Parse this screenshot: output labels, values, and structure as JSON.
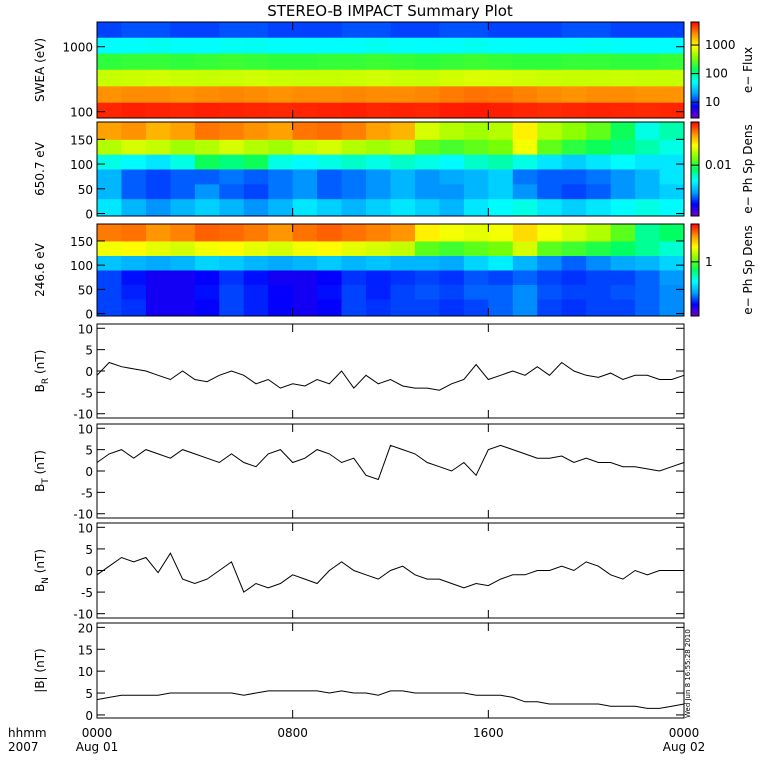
{
  "title": "STEREO-B IMPACT Summary Plot",
  "timestamp": "Wed Jun  8 16:55:28 2010",
  "colormap": [
    "#7000c0",
    "#0000ff",
    "#00a0ff",
    "#00ffff",
    "#00ff60",
    "#80ff00",
    "#ffff00",
    "#ff9000",
    "#ff0000"
  ],
  "x_axis": {
    "xlim": [
      0,
      24
    ],
    "xticks": [
      {
        "value": 0,
        "label": "0000"
      },
      {
        "value": 8,
        "label": "0800"
      },
      {
        "value": 16,
        "label": "1600"
      },
      {
        "value": 24,
        "label": "0000"
      }
    ],
    "date_labels": [
      {
        "value": 0,
        "label": "Aug 01"
      },
      {
        "value": 24,
        "label": "Aug 02"
      }
    ],
    "corner_labels": [
      "hhmm",
      "2007"
    ],
    "bin_edges": [
      0,
      1,
      2,
      3,
      4,
      5,
      6,
      7,
      8,
      9,
      10,
      11,
      12,
      13,
      14,
      15,
      16,
      17,
      18,
      19,
      20,
      21,
      22,
      23,
      24
    ],
    "x": [
      0,
      0.5,
      1,
      1.5,
      2,
      2.5,
      3,
      3.5,
      4,
      4.5,
      5,
      5.5,
      6,
      6.5,
      7,
      7.5,
      8,
      8.5,
      9,
      9.5,
      10,
      10.5,
      11,
      11.5,
      12,
      12.5,
      13,
      13.5,
      14,
      14.5,
      15,
      15.5,
      16,
      16.5,
      17,
      17.5,
      18,
      18.5,
      19,
      19.5,
      20,
      20.5,
      21,
      21.5,
      22,
      22.5,
      23,
      23.5,
      24
    ]
  },
  "chart_data": [
    {
      "type": "heatmap",
      "ylabel": "SWEA (eV)",
      "ylog": true,
      "ylim": [
        80,
        2400
      ],
      "yticks": [
        100,
        1000
      ],
      "y_edges": [
        80,
        140,
        250,
        450,
        800,
        1400,
        2400
      ],
      "zlabel": "e− Flux",
      "zlog": true,
      "zlim": [
        2.8,
        6400
      ],
      "zticks": [
        10,
        100,
        1000
      ],
      "z": [
        [
          5000,
          5200,
          5100,
          5000,
          5200,
          5100,
          5000,
          4900,
          5000,
          5100,
          5200,
          5000,
          5100,
          5000,
          5300,
          5400,
          5200,
          5000,
          4800,
          5000,
          5100,
          5000,
          4900,
          5000
        ],
        [
          2400,
          2500,
          2500,
          2400,
          2500,
          2600,
          2500,
          2400,
          2500,
          2500,
          2600,
          2500,
          2500,
          2600,
          2800,
          3000,
          2900,
          2700,
          2500,
          2400,
          2500,
          2500,
          2400,
          2400
        ],
        [
          600,
          620,
          640,
          620,
          600,
          620,
          640,
          620,
          600,
          600,
          620,
          640,
          620,
          600,
          650,
          700,
          680,
          640,
          620,
          600,
          600,
          620,
          600,
          600
        ],
        [
          190,
          200,
          200,
          190,
          200,
          210,
          200,
          190,
          190,
          200,
          200,
          210,
          200,
          190,
          200,
          210,
          200,
          190,
          190,
          200,
          200,
          190,
          190,
          200
        ],
        [
          50,
          52,
          55,
          52,
          50,
          54,
          55,
          52,
          50,
          50,
          52,
          55,
          52,
          50,
          52,
          55,
          52,
          50,
          50,
          52,
          54,
          52,
          50,
          50
        ],
        [
          11,
          12,
          12,
          11,
          11,
          12,
          12,
          11,
          11,
          11,
          12,
          12,
          11,
          11,
          12,
          12,
          11,
          11,
          11,
          12,
          12,
          11,
          11,
          11
        ]
      ]
    },
    {
      "type": "heatmap",
      "ylabel": "650.7 eV",
      "ylog": false,
      "ylim": [
        -5,
        185
      ],
      "yticks": [
        0,
        50,
        100,
        150
      ],
      "y_edges": [
        -5,
        30,
        60,
        90,
        120,
        150,
        185
      ],
      "zlabel": "e− Ph Sp Dens",
      "zlog": true,
      "zlim": [
        0.0015,
        0.05
      ],
      "zticks": [
        0.01
      ],
      "z": [
        [
          0.005,
          0.004,
          0.0035,
          0.004,
          0.0045,
          0.004,
          0.0035,
          0.004,
          0.005,
          0.0045,
          0.004,
          0.0045,
          0.005,
          0.0045,
          0.004,
          0.005,
          0.0055,
          0.006,
          0.005,
          0.0045,
          0.005,
          0.0055,
          0.006,
          0.0055
        ],
        [
          0.004,
          0.003,
          0.0028,
          0.003,
          0.0035,
          0.003,
          0.0028,
          0.0032,
          0.0035,
          0.003,
          0.0032,
          0.0035,
          0.004,
          0.0035,
          0.0035,
          0.004,
          0.0045,
          0.0035,
          0.003,
          0.0028,
          0.003,
          0.0035,
          0.004,
          0.0045
        ],
        [
          0.004,
          0.003,
          0.0028,
          0.003,
          0.003,
          0.0032,
          0.003,
          0.0032,
          0.0035,
          0.003,
          0.0032,
          0.0035,
          0.004,
          0.0035,
          0.0038,
          0.004,
          0.0045,
          0.0032,
          0.003,
          0.003,
          0.0032,
          0.0035,
          0.004,
          0.005
        ],
        [
          0.006,
          0.0055,
          0.005,
          0.006,
          0.009,
          0.008,
          0.009,
          0.006,
          0.0055,
          0.006,
          0.0065,
          0.006,
          0.0065,
          0.006,
          0.0055,
          0.0065,
          0.007,
          0.006,
          0.005,
          0.0045,
          0.005,
          0.0055,
          0.005,
          0.005
        ],
        [
          0.016,
          0.018,
          0.017,
          0.015,
          0.016,
          0.018,
          0.016,
          0.015,
          0.017,
          0.018,
          0.016,
          0.015,
          0.016,
          0.012,
          0.011,
          0.012,
          0.013,
          0.02,
          0.012,
          0.01,
          0.009,
          0.008,
          0.007,
          0.006
        ],
        [
          0.03,
          0.032,
          0.028,
          0.03,
          0.035,
          0.034,
          0.032,
          0.03,
          0.035,
          0.036,
          0.034,
          0.03,
          0.028,
          0.018,
          0.016,
          0.015,
          0.016,
          0.022,
          0.016,
          0.014,
          0.012,
          0.009,
          0.006,
          0.007
        ]
      ]
    },
    {
      "type": "heatmap",
      "ylabel": "246.6 eV",
      "ylog": false,
      "ylim": [
        -5,
        185
      ],
      "yticks": [
        0,
        50,
        100,
        150
      ],
      "y_edges": [
        -5,
        30,
        60,
        90,
        120,
        150,
        185
      ],
      "zlabel": "e− Ph Sp Dens",
      "zlog": true,
      "zlim": [
        0.1,
        5
      ],
      "zticks": [
        1
      ],
      "z": [
        [
          0.2,
          0.19,
          0.15,
          0.15,
          0.16,
          0.2,
          0.18,
          0.16,
          0.15,
          0.16,
          0.2,
          0.19,
          0.2,
          0.2,
          0.19,
          0.2,
          0.22,
          0.25,
          0.2,
          0.19,
          0.2,
          0.2,
          0.22,
          0.25
        ],
        [
          0.2,
          0.18,
          0.15,
          0.15,
          0.17,
          0.2,
          0.18,
          0.16,
          0.15,
          0.17,
          0.2,
          0.18,
          0.2,
          0.21,
          0.2,
          0.22,
          0.22,
          0.25,
          0.21,
          0.2,
          0.2,
          0.21,
          0.22,
          0.25
        ],
        [
          0.2,
          0.17,
          0.15,
          0.15,
          0.16,
          0.19,
          0.17,
          0.15,
          0.15,
          0.16,
          0.19,
          0.18,
          0.19,
          0.2,
          0.19,
          0.21,
          0.2,
          0.22,
          0.2,
          0.19,
          0.2,
          0.2,
          0.22,
          0.26
        ],
        [
          0.32,
          0.3,
          0.28,
          0.3,
          0.35,
          0.33,
          0.3,
          0.28,
          0.3,
          0.33,
          0.3,
          0.32,
          0.3,
          0.3,
          0.28,
          0.35,
          0.4,
          0.3,
          0.25,
          0.22,
          0.25,
          0.28,
          0.3,
          0.35
        ],
        [
          1.8,
          1.9,
          1.7,
          1.6,
          1.8,
          1.9,
          1.7,
          1.6,
          1.8,
          1.9,
          1.7,
          1.6,
          1.5,
          1.0,
          0.9,
          1.0,
          1.1,
          1.6,
          1.0,
          0.9,
          0.8,
          0.7,
          0.6,
          0.5
        ],
        [
          3.3,
          3.4,
          3.0,
          3.2,
          3.6,
          3.5,
          3.3,
          3.0,
          3.4,
          3.6,
          3.4,
          3.2,
          3.0,
          2.0,
          1.8,
          1.7,
          1.8,
          2.2,
          1.8,
          1.6,
          1.4,
          1.0,
          0.6,
          0.7
        ]
      ]
    },
    {
      "type": "line",
      "ylabel": "B",
      "ylabel_sub": "R",
      "ylabel_unit": " (nT)",
      "ylim": [
        -11,
        11
      ],
      "yticks": [
        -10,
        -5,
        0,
        5,
        10
      ],
      "color": "#000000",
      "values": [
        -1,
        2,
        1,
        0.5,
        0,
        -1,
        -2,
        0,
        -2,
        -2.5,
        -1,
        0,
        -1,
        -3,
        -2,
        -4,
        -3,
        -3.5,
        -2,
        -3,
        0,
        -4,
        -1,
        -3,
        -2,
        -3.5,
        -4,
        -4,
        -4.5,
        -3,
        -2,
        1.5,
        -2,
        -1,
        0,
        -1,
        1,
        -1,
        2,
        0,
        -1,
        -1.5,
        -0.5,
        -2,
        -1,
        -1,
        -2,
        -2,
        -1
      ]
    },
    {
      "type": "line",
      "ylabel": "B",
      "ylabel_sub": "T",
      "ylabel_unit": " (nT)",
      "ylim": [
        -11,
        11
      ],
      "yticks": [
        -10,
        -5,
        0,
        5,
        10
      ],
      "color": "#000000",
      "values": [
        2,
        4,
        5,
        3,
        5,
        4,
        3,
        5,
        4,
        3,
        2,
        4,
        2,
        1,
        4,
        5,
        2,
        3,
        5,
        4,
        2,
        3,
        -1,
        -2,
        6,
        5,
        4,
        2,
        1,
        0,
        2,
        -1,
        5,
        6,
        5,
        4,
        3,
        3,
        3.5,
        2,
        3,
        2,
        2,
        1,
        1,
        0.5,
        0,
        1,
        2
      ]
    },
    {
      "type": "line",
      "ylabel": "B",
      "ylabel_sub": "N",
      "ylabel_unit": " (nT)",
      "ylim": [
        -11,
        11
      ],
      "yticks": [
        -10,
        -5,
        0,
        5,
        10
      ],
      "color": "#000000",
      "values": [
        -1,
        1,
        3,
        2,
        3,
        -0.5,
        4,
        -2,
        -3,
        -2,
        0,
        2,
        -5,
        -3,
        -4,
        -3,
        -1,
        -2,
        -3,
        0,
        2,
        0,
        -1,
        -2,
        0,
        1,
        -1,
        -2,
        -2,
        -3,
        -4,
        -3,
        -3.5,
        -2,
        -1,
        -1,
        0,
        0,
        1,
        0,
        2,
        1,
        -1,
        -2,
        0,
        -1,
        0,
        0,
        0
      ]
    },
    {
      "type": "line",
      "ylabel": "|B| (nT)",
      "ylim": [
        -0.7,
        21
      ],
      "yticks": [
        0,
        5,
        10,
        15,
        20
      ],
      "color": "#000000",
      "values": [
        3.5,
        4,
        4.5,
        4.5,
        4.5,
        4.5,
        5,
        5,
        5,
        5,
        5,
        5,
        4.5,
        5,
        5.5,
        5.5,
        5.5,
        5.5,
        5.5,
        5,
        5.5,
        5,
        5,
        4.5,
        5.5,
        5.5,
        5,
        5,
        5,
        5,
        5,
        4.5,
        4.5,
        4.5,
        4,
        3,
        3,
        2.5,
        2.5,
        2.5,
        2.5,
        2.5,
        2,
        2,
        2,
        1.5,
        1.5,
        2,
        2.5
      ]
    }
  ]
}
